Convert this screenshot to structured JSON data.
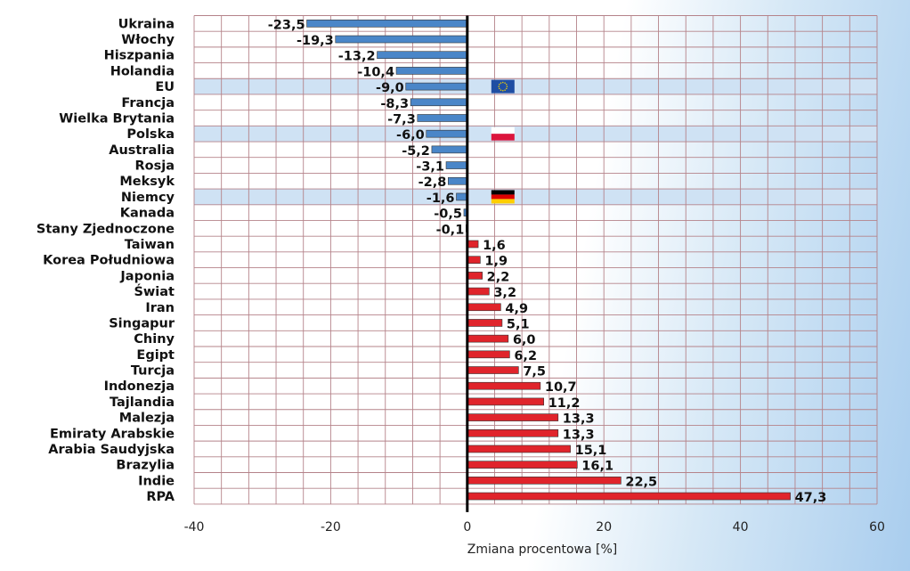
{
  "chart_data": {
    "type": "bar",
    "orientation": "horizontal",
    "title": "",
    "xlabel": "Zmiana procentowa [%]",
    "ylabel": "",
    "xlim": [
      -40,
      60
    ],
    "xticks": [
      -40,
      -20,
      0,
      20,
      40,
      60
    ],
    "xtick_labels": [
      "-40",
      "-20",
      "0",
      "20",
      "40",
      "60"
    ],
    "grid": true,
    "categories": [
      "Ukraina",
      "Włochy",
      "Hiszpania",
      "Holandia",
      "EU",
      "Francja",
      "Wielka Brytania",
      "Polska",
      "Australia",
      "Rosja",
      "Meksyk",
      "Niemcy",
      "Kanada",
      "Stany Zjednoczone",
      "Taiwan",
      "Korea Południowa",
      "Japonia",
      "Świat",
      "Iran",
      "Singapur",
      "Chiny",
      "Egipt",
      "Turcja",
      "Indonezja",
      "Tajlandia",
      "Malezja",
      "Emiraty Arabskie",
      "Arabia Saudyjska",
      "Brazylia",
      "Indie",
      "RPA"
    ],
    "values": [
      -23.5,
      -19.3,
      -13.2,
      -10.4,
      -9.0,
      -8.3,
      -7.3,
      -6.0,
      -5.2,
      -3.1,
      -2.8,
      -1.6,
      -0.5,
      -0.1,
      1.6,
      1.9,
      2.2,
      3.2,
      4.9,
      5.1,
      6.0,
      6.2,
      7.5,
      10.7,
      11.2,
      13.3,
      13.3,
      15.1,
      16.1,
      22.5,
      47.3
    ],
    "value_labels": [
      "-23,5",
      "-19,3",
      "-13,2",
      "-10,4",
      "-9,0",
      "-8,3",
      "-7,3",
      "-6,0",
      "-5,2",
      "-3,1",
      "-2,8",
      "-1,6",
      "-0,5",
      "-0,1",
      "1,6",
      "1,9",
      "2,2",
      "3,2",
      "4,9",
      "5,1",
      "6,0",
      "6,2",
      "7,5",
      "10,7",
      "11,2",
      "13,3",
      "13,3",
      "15,1",
      "16,1",
      "22,5",
      "47,3"
    ],
    "highlighted": [
      {
        "category": "EU",
        "flag": "eu"
      },
      {
        "category": "Polska",
        "flag": "poland"
      },
      {
        "category": "Niemcy",
        "flag": "germany"
      }
    ]
  },
  "colors": {
    "negative_bar": "#4a86c8",
    "positive_bar": "#e0242b",
    "highlight_row": "#cfe2f4",
    "grid": "#b5838a",
    "zero_axis": "#000000",
    "eu_blue": "#1f4ea3",
    "eu_star": "#f5d300",
    "pl_white": "#ffffff",
    "pl_red": "#dc143c",
    "de_black": "#000000",
    "de_red": "#dd0000",
    "de_gold": "#ffce00"
  }
}
